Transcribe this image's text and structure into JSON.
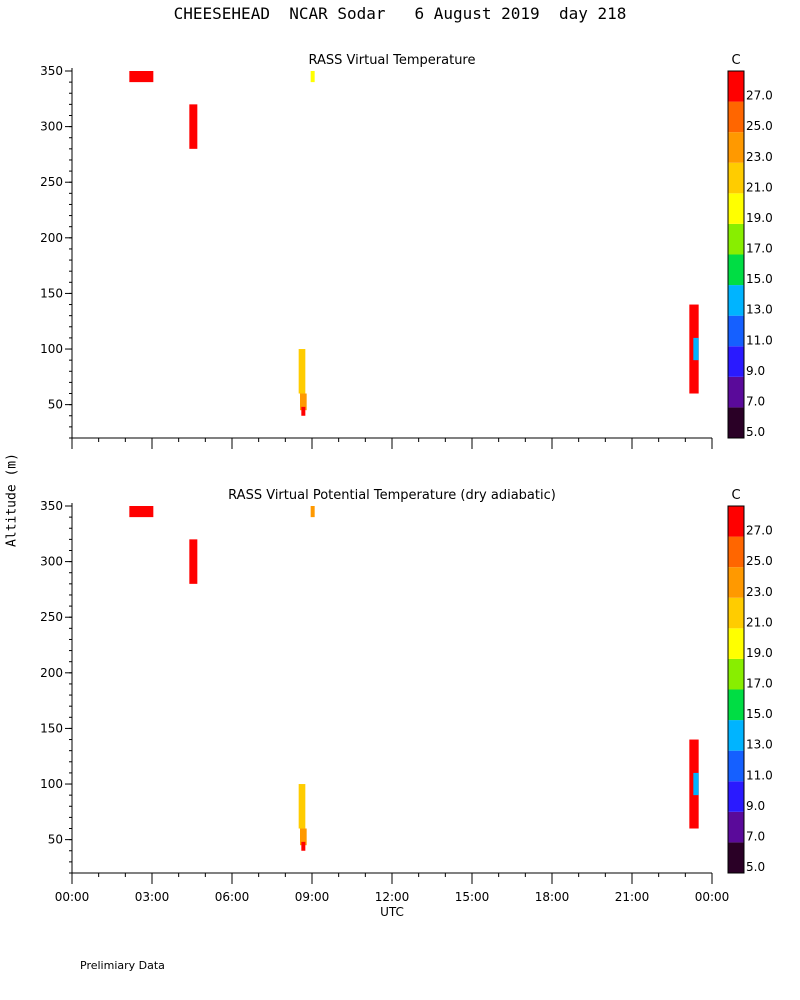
{
  "title": "CHEESEHEAD  NCAR Sodar   6 August 2019  day 218",
  "y_axis_title": "Altitude (m)",
  "x_axis_title": "UTC",
  "footer": "Prelimiary Data",
  "colorbar": {
    "unit": "C",
    "levels": [
      5.0,
      7.0,
      9.0,
      11.0,
      13.0,
      15.0,
      17.0,
      19.0,
      21.0,
      23.0,
      25.0,
      27.0
    ],
    "labels": [
      "5.0",
      "7.0",
      "9.0",
      "11.0",
      "13.0",
      "15.0",
      "17.0",
      "19.0",
      "21.0",
      "23.0",
      "25.0",
      "27.0"
    ],
    "colors": [
      "#2a0026",
      "#5a0a9a",
      "#2a1aff",
      "#1560ff",
      "#00b4ff",
      "#00dd44",
      "#88ee00",
      "#ffff00",
      "#ffcc00",
      "#ff9900",
      "#ff6600",
      "#ff0000"
    ]
  },
  "chart_data": [
    {
      "type": "heatmap",
      "title": "RASS Virtual Temperature",
      "xlabel": "",
      "ylabel": "Altitude (m)",
      "xlim": [
        0,
        24
      ],
      "ylim": [
        20,
        350
      ],
      "x_ticks": [
        0,
        3,
        6,
        9,
        12,
        15,
        18,
        21,
        24
      ],
      "x_tick_labels": [],
      "y_ticks": [
        50,
        100,
        150,
        200,
        250,
        300,
        350
      ],
      "y_tick_labels": [
        "50",
        "100",
        "150",
        "200",
        "250",
        "300",
        "350"
      ],
      "cells": [
        {
          "t0": 2.15,
          "t1": 3.05,
          "z0": 340,
          "z1": 350,
          "temp": 28
        },
        {
          "t0": 4.4,
          "t1": 4.7,
          "z0": 280,
          "z1": 320,
          "temp": 28
        },
        {
          "t0": 8.95,
          "t1": 9.1,
          "z0": 340,
          "z1": 350,
          "temp": 20.5
        },
        {
          "t0": 8.5,
          "t1": 8.75,
          "z0": 60,
          "z1": 100,
          "temp": 22
        },
        {
          "t0": 8.55,
          "t1": 8.8,
          "z0": 45,
          "z1": 60,
          "temp": 24
        },
        {
          "t0": 8.6,
          "t1": 8.75,
          "z0": 40,
          "z1": 48,
          "temp": 28
        },
        {
          "t0": 23.15,
          "t1": 23.5,
          "z0": 60,
          "z1": 140,
          "temp": 28
        },
        {
          "t0": 23.3,
          "t1": 23.5,
          "z0": 90,
          "z1": 110,
          "temp": 13
        }
      ]
    },
    {
      "type": "heatmap",
      "title": "RASS Virtual Potential Temperature (dry adiabatic)",
      "xlabel": "UTC",
      "ylabel": "Altitude (m)",
      "xlim": [
        0,
        24
      ],
      "ylim": [
        20,
        350
      ],
      "x_ticks": [
        0,
        3,
        6,
        9,
        12,
        15,
        18,
        21,
        24
      ],
      "x_tick_labels": [
        "00:00",
        "03:00",
        "06:00",
        "09:00",
        "12:00",
        "15:00",
        "18:00",
        "21:00",
        "00:00"
      ],
      "y_ticks": [
        50,
        100,
        150,
        200,
        250,
        300,
        350
      ],
      "y_tick_labels": [
        "50",
        "100",
        "150",
        "200",
        "250",
        "300",
        "350"
      ],
      "cells": [
        {
          "t0": 2.15,
          "t1": 3.05,
          "z0": 340,
          "z1": 350,
          "temp": 28
        },
        {
          "t0": 4.4,
          "t1": 4.7,
          "z0": 280,
          "z1": 320,
          "temp": 28
        },
        {
          "t0": 8.95,
          "t1": 9.1,
          "z0": 340,
          "z1": 350,
          "temp": 24
        },
        {
          "t0": 8.5,
          "t1": 8.75,
          "z0": 60,
          "z1": 100,
          "temp": 22
        },
        {
          "t0": 8.55,
          "t1": 8.8,
          "z0": 45,
          "z1": 60,
          "temp": 24
        },
        {
          "t0": 8.6,
          "t1": 8.75,
          "z0": 40,
          "z1": 48,
          "temp": 28
        },
        {
          "t0": 23.15,
          "t1": 23.5,
          "z0": 60,
          "z1": 140,
          "temp": 28
        },
        {
          "t0": 23.3,
          "t1": 23.5,
          "z0": 90,
          "z1": 110,
          "temp": 13
        }
      ]
    }
  ]
}
